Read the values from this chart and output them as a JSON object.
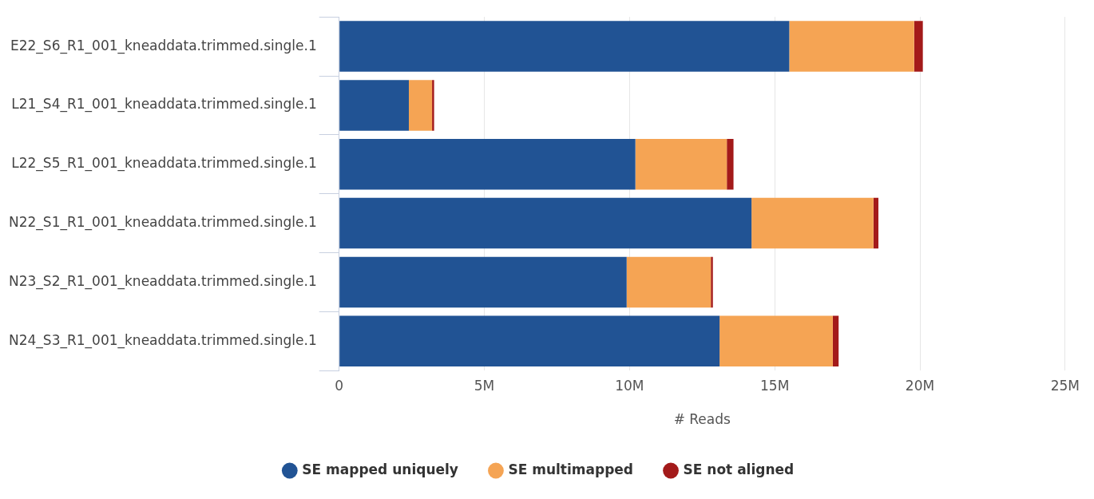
{
  "chart_data": {
    "type": "bar",
    "orientation": "horizontal",
    "stacked": true,
    "xlabel": "# Reads",
    "categories": [
      "E22_S6_R1_001_kneaddata.trimmed.single.1",
      "L21_S4_R1_001_kneaddata.trimmed.single.1",
      "L22_S5_R1_001_kneaddata.trimmed.single.1",
      "N22_S1_R1_001_kneaddata.trimmed.single.1",
      "N23_S2_R1_001_kneaddata.trimmed.single.1",
      "N24_S3_R1_001_kneaddata.trimmed.single.1"
    ],
    "series": [
      {
        "name": "SE mapped uniquely",
        "color": "#215394",
        "values": [
          15500000,
          2400000,
          10200000,
          14200000,
          9900000,
          13100000
        ]
      },
      {
        "name": "SE multimapped",
        "color": "#f5a454",
        "values": [
          4300000,
          800000,
          3150000,
          4200000,
          2900000,
          3900000
        ]
      },
      {
        "name": "SE not aligned",
        "color": "#a31a1a",
        "values": [
          300000,
          70000,
          230000,
          170000,
          70000,
          200000
        ]
      }
    ],
    "xlim": [
      0,
      25000000
    ],
    "xticks": [
      {
        "value": 0,
        "label": "0"
      },
      {
        "value": 5000000,
        "label": "5M"
      },
      {
        "value": 10000000,
        "label": "10M"
      },
      {
        "value": 15000000,
        "label": "15M"
      },
      {
        "value": 20000000,
        "label": "20M"
      },
      {
        "value": 25000000,
        "label": "25M"
      }
    ],
    "grid": "x",
    "legend": "bottom",
    "marker": "circle"
  }
}
